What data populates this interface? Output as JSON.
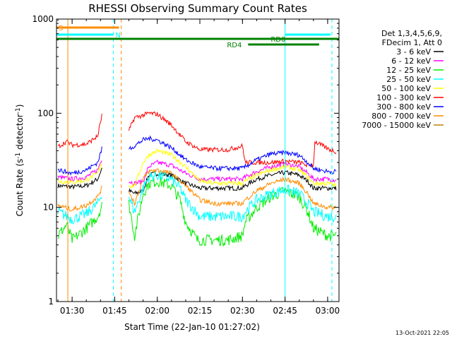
{
  "chart_data": {
    "type": "line",
    "title": "RHESSI Observing Summary Count Rates",
    "xlabel": "Start Time (22-Jan-10 01:27:02)",
    "ylabel_main": "Count Rate (s",
    "ylabel_sup1": "-1",
    "ylabel_mid": " detector",
    "ylabel_sup2": "-1",
    "ylabel_end": ")",
    "yscale": "log",
    "ylim": [
      1,
      1000
    ],
    "xlim_minutes": [
      84.5,
      184
    ],
    "y_ticks": [
      {
        "value": 1,
        "label": "1"
      },
      {
        "value": 10,
        "label": "10"
      },
      {
        "value": 100,
        "label": "100"
      },
      {
        "value": 1000,
        "label": "1000"
      }
    ],
    "x_ticks": [
      {
        "minute": 90,
        "label": "01:30"
      },
      {
        "minute": 105,
        "label": "01:45"
      },
      {
        "minute": 120,
        "label": "02:00"
      },
      {
        "minute": 135,
        "label": "02:15"
      },
      {
        "minute": 150,
        "label": "02:30"
      },
      {
        "minute": 165,
        "label": "02:45"
      },
      {
        "minute": 180,
        "label": "03:00"
      }
    ],
    "legend_header": [
      "Det 1,3,4,5,6,9,",
      "FDecim 1, Att 0"
    ],
    "series": [
      {
        "name": "3 - 6 keV",
        "color": "#000000",
        "points": [
          [
            85,
            17
          ],
          [
            90,
            16.5
          ],
          [
            95,
            17
          ],
          [
            99,
            20
          ],
          [
            100.5,
            26
          ],
          [
            110,
            15
          ],
          [
            112,
            14
          ],
          [
            115,
            15
          ],
          [
            117,
            22
          ],
          [
            120,
            23
          ],
          [
            125,
            22
          ],
          [
            130,
            18
          ],
          [
            135,
            16
          ],
          [
            140,
            16
          ],
          [
            145,
            16
          ],
          [
            150,
            16
          ],
          [
            151,
            17
          ],
          [
            155,
            20
          ],
          [
            160,
            22
          ],
          [
            165,
            23.5
          ],
          [
            170,
            22
          ],
          [
            173,
            19
          ],
          [
            175,
            16
          ],
          [
            180,
            16
          ],
          [
            183,
            16
          ]
        ]
      },
      {
        "name": "6 - 12 keV",
        "color": "#ff00ff",
        "points": [
          [
            85,
            21
          ],
          [
            90,
            20
          ],
          [
            95,
            21
          ],
          [
            99,
            25
          ],
          [
            100.5,
            33
          ],
          [
            110,
            19
          ],
          [
            112,
            18
          ],
          [
            115,
            19
          ],
          [
            117,
            27
          ],
          [
            120,
            30
          ],
          [
            125,
            28
          ],
          [
            130,
            23
          ],
          [
            135,
            20
          ],
          [
            140,
            20
          ],
          [
            145,
            20
          ],
          [
            150,
            20
          ],
          [
            151,
            21
          ],
          [
            155,
            24
          ],
          [
            160,
            27
          ],
          [
            165,
            29
          ],
          [
            170,
            27
          ],
          [
            173,
            23
          ],
          [
            175,
            20
          ],
          [
            180,
            20
          ],
          [
            183,
            19.5
          ]
        ]
      },
      {
        "name": "12 - 25 keV",
        "color": "#00ee00",
        "points": [
          [
            85,
            5
          ],
          [
            88,
            6.5
          ],
          [
            90,
            4.5
          ],
          [
            95,
            6
          ],
          [
            99,
            8
          ],
          [
            100.5,
            10.5
          ],
          [
            110,
            11
          ],
          [
            112,
            5
          ],
          [
            115,
            14
          ],
          [
            117,
            18
          ],
          [
            120,
            19
          ],
          [
            125,
            17
          ],
          [
            128,
            12
          ],
          [
            130,
            7
          ],
          [
            134,
            4.5
          ],
          [
            140,
            4.5
          ],
          [
            145,
            4.5
          ],
          [
            150,
            5
          ],
          [
            151,
            7
          ],
          [
            155,
            10
          ],
          [
            160,
            13
          ],
          [
            165,
            15
          ],
          [
            170,
            13
          ],
          [
            173,
            9
          ],
          [
            175,
            6
          ],
          [
            180,
            5
          ],
          [
            183,
            5
          ]
        ]
      },
      {
        "name": "25 - 50 keV",
        "color": "#00ffff",
        "points": [
          [
            85,
            9
          ],
          [
            90,
            7.5
          ],
          [
            95,
            8.5
          ],
          [
            99,
            11
          ],
          [
            100.5,
            14
          ],
          [
            110,
            13
          ],
          [
            112,
            9
          ],
          [
            115,
            16
          ],
          [
            117,
            21
          ],
          [
            120,
            22
          ],
          [
            125,
            20
          ],
          [
            128,
            16
          ],
          [
            130,
            12
          ],
          [
            135,
            8
          ],
          [
            140,
            8
          ],
          [
            145,
            8
          ],
          [
            150,
            8
          ],
          [
            151,
            9
          ],
          [
            155,
            12
          ],
          [
            160,
            14
          ],
          [
            165,
            15.5
          ],
          [
            170,
            14
          ],
          [
            173,
            11
          ],
          [
            175,
            9
          ],
          [
            180,
            8
          ],
          [
            183,
            8
          ]
        ]
      },
      {
        "name": "50 - 100 keV",
        "color": "#ffff00",
        "points": [
          [
            85,
            19
          ],
          [
            90,
            18.5
          ],
          [
            95,
            19.5
          ],
          [
            99,
            23
          ],
          [
            100.5,
            30
          ],
          [
            110,
            17
          ],
          [
            112,
            17
          ],
          [
            115,
            30
          ],
          [
            117,
            36
          ],
          [
            120,
            40
          ],
          [
            125,
            36
          ],
          [
            130,
            27
          ],
          [
            135,
            19
          ],
          [
            140,
            18
          ],
          [
            145,
            18
          ],
          [
            150,
            18
          ],
          [
            151,
            19
          ],
          [
            155,
            22
          ],
          [
            160,
            25
          ],
          [
            165,
            27
          ],
          [
            170,
            25
          ],
          [
            173,
            21
          ],
          [
            175,
            18
          ],
          [
            180,
            18
          ],
          [
            183,
            17
          ]
        ]
      },
      {
        "name": "100 - 300 keV",
        "color": "#ff0000",
        "points": [
          [
            85,
            44
          ],
          [
            88,
            50
          ],
          [
            90,
            46
          ],
          [
            95,
            47
          ],
          [
            99,
            57
          ],
          [
            100.5,
            95
          ],
          [
            110,
            65
          ],
          [
            112,
            90
          ],
          [
            115,
            95
          ],
          [
            117,
            100
          ],
          [
            120,
            98
          ],
          [
            125,
            75
          ],
          [
            130,
            50
          ],
          [
            135,
            41
          ],
          [
            140,
            41
          ],
          [
            145,
            41
          ],
          [
            150,
            45
          ],
          [
            151,
            30
          ],
          [
            155,
            30
          ],
          [
            160,
            30
          ],
          [
            165,
            31
          ],
          [
            170,
            30
          ],
          [
            173,
            28
          ],
          [
            175,
            28
          ],
          [
            175.5,
            50
          ],
          [
            180,
            42
          ],
          [
            183,
            39
          ]
        ]
      },
      {
        "name": "300 - 800 keV",
        "color": "#0000ff",
        "points": [
          [
            85,
            25
          ],
          [
            90,
            23
          ],
          [
            95,
            25
          ],
          [
            99,
            30
          ],
          [
            100.5,
            42
          ],
          [
            110,
            42
          ],
          [
            112,
            45
          ],
          [
            115,
            52
          ],
          [
            117,
            54
          ],
          [
            120,
            52
          ],
          [
            125,
            43
          ],
          [
            130,
            32
          ],
          [
            135,
            27
          ],
          [
            140,
            26
          ],
          [
            145,
            26
          ],
          [
            150,
            26
          ],
          [
            151,
            27
          ],
          [
            155,
            32
          ],
          [
            160,
            37
          ],
          [
            165,
            38
          ],
          [
            170,
            36
          ],
          [
            173,
            30
          ],
          [
            175,
            26
          ],
          [
            180,
            24
          ],
          [
            183,
            24
          ]
        ]
      },
      {
        "name": "800 - 7000 keV",
        "color": "#ff8c00",
        "points": [
          [
            85,
            10.5
          ],
          [
            90,
            9.5
          ],
          [
            95,
            10.5
          ],
          [
            99,
            13
          ],
          [
            100.5,
            16
          ],
          [
            110,
            15
          ],
          [
            112,
            11
          ],
          [
            115,
            20
          ],
          [
            117,
            24
          ],
          [
            120,
            25
          ],
          [
            125,
            23
          ],
          [
            130,
            17
          ],
          [
            135,
            12
          ],
          [
            140,
            11
          ],
          [
            145,
            11
          ],
          [
            150,
            11
          ],
          [
            151,
            12
          ],
          [
            155,
            15
          ],
          [
            160,
            18
          ],
          [
            165,
            20
          ],
          [
            170,
            18
          ],
          [
            173,
            14
          ],
          [
            175,
            11
          ],
          [
            180,
            10
          ],
          [
            183,
            10
          ]
        ]
      },
      {
        "name": "7000 - 15000 keV",
        "color": "#b8860b",
        "points": []
      }
    ],
    "state_bars": [
      {
        "label": "S",
        "color": "#ff8c00",
        "start": 84.5,
        "end": 106.5,
        "y": 1.0
      },
      {
        "label": "N",
        "color": "#00ffff",
        "start": 84.5,
        "end": 104.5,
        "y": 0.95
      },
      {
        "label": "",
        "color": "#00ffff",
        "start": 165,
        "end": 181,
        "y": 0.95
      },
      {
        "label": "RD0",
        "color": "#008000",
        "start": 84.5,
        "end": 184,
        "y": 0.92
      },
      {
        "label": "RD4",
        "color": "#008000",
        "start": 152,
        "end": 177,
        "y": 0.88
      }
    ],
    "vertical_markers": [
      {
        "minute": 88.5,
        "color": "#ff8c00",
        "style": "solid"
      },
      {
        "minute": 104.5,
        "color": "#00ffff",
        "style": "dashed"
      },
      {
        "minute": 107.3,
        "color": "#ff8c00",
        "style": "dashed"
      },
      {
        "minute": 165.0,
        "color": "#00ffff",
        "style": "solid"
      },
      {
        "minute": 181.5,
        "color": "#00ffff",
        "style": "dashed"
      }
    ],
    "footer_date": "13-Oct-2021 22:05"
  }
}
